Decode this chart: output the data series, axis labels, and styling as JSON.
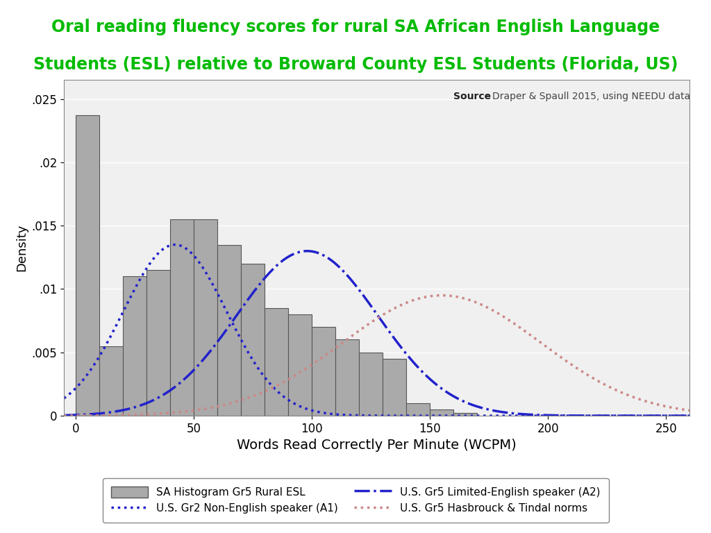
{
  "title_line1": "Oral reading fluency scores for rural SA African English Language",
  "title_line2": "Students (ESL) relative to Broward County ESL Students (Florida, US)",
  "title_color": "#00BB00",
  "xlabel": "Words Read Correctly Per Minute (WCPM)",
  "ylabel": "Density",
  "xlim": [
    -5,
    260
  ],
  "ylim": [
    0,
    0.0265
  ],
  "yticks": [
    0,
    0.005,
    0.01,
    0.015,
    0.02,
    0.025
  ],
  "ytick_labels": [
    "0",
    ".005",
    ".01",
    ".015",
    ".02",
    ".025"
  ],
  "xticks": [
    0,
    50,
    100,
    150,
    200,
    250
  ],
  "hist_color": "#AAAAAA",
  "hist_edgecolor": "#555555",
  "curve_a1_color": "#2222CC",
  "curve_a2_color": "#2222CC",
  "curve_ht_color": "#CC8888",
  "bg_color": "#F0F0F0",
  "legend_labels": [
    "SA Histogram Gr5 Rural ESL",
    "U.S. Gr5 Limited-English speaker (A2)",
    "U.S. Gr2 Non-English speaker (A1)",
    "U.S. Gr5 Hasbrouck & Tindal norms"
  ],
  "curve_a1_mean": 42,
  "curve_a1_std": 22,
  "curve_a1_peak": 0.0135,
  "curve_a2_mean": 98,
  "curve_a2_std": 30,
  "curve_a2_peak": 0.013,
  "curve_ht_mean": 155,
  "curve_ht_std": 42,
  "curve_ht_peak": 0.0095,
  "bin_edges": [
    0,
    10,
    20,
    30,
    40,
    50,
    60,
    70,
    80,
    90,
    100,
    110,
    120,
    130,
    140,
    150,
    160,
    170
  ],
  "bin_heights": [
    0.0237,
    0.0055,
    0.011,
    0.0115,
    0.0155,
    0.0155,
    0.0135,
    0.012,
    0.0085,
    0.008,
    0.007,
    0.006,
    0.005,
    0.0045,
    0.001,
    0.0005,
    0.0002
  ]
}
